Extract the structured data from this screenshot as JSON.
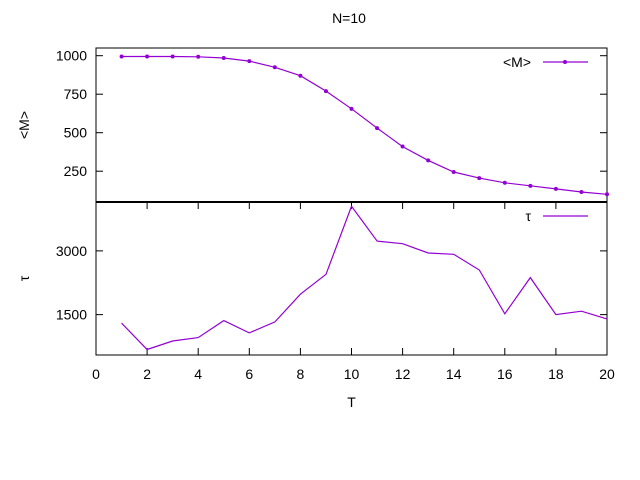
{
  "chart_data": [
    {
      "type": "line",
      "title": "N=10",
      "ylabel": "<M>",
      "xlim": [
        0,
        20
      ],
      "ylim": [
        50,
        1050
      ],
      "yticks": [
        250,
        500,
        750,
        1000
      ],
      "grid": false,
      "legend_position": "top-right",
      "series": [
        {
          "name": "<M>",
          "color": "#9400D3",
          "marker": "point",
          "x": [
            1,
            2,
            3,
            4,
            5,
            6,
            7,
            8,
            9,
            10,
            11,
            12,
            13,
            14,
            15,
            16,
            17,
            18,
            19,
            20
          ],
          "y": [
            995,
            995,
            995,
            993,
            985,
            965,
            925,
            870,
            770,
            655,
            530,
            410,
            320,
            245,
            205,
            175,
            155,
            135,
            115,
            100
          ]
        }
      ]
    },
    {
      "type": "line",
      "xlabel": "T",
      "ylabel": "τ",
      "xlim": [
        0,
        20
      ],
      "ylim": [
        550,
        4150
      ],
      "xticks": [
        0,
        2,
        4,
        6,
        8,
        10,
        12,
        14,
        16,
        18,
        20
      ],
      "yticks": [
        1500,
        3000
      ],
      "grid": false,
      "legend_position": "top-right",
      "series": [
        {
          "name": "τ",
          "color": "#9400D3",
          "marker": "none",
          "x": [
            1,
            2,
            3,
            4,
            5,
            6,
            7,
            8,
            9,
            10,
            11,
            12,
            13,
            14,
            15,
            16,
            17,
            18,
            19,
            20
          ],
          "y": [
            1300,
            680,
            880,
            960,
            1360,
            1070,
            1330,
            1980,
            2450,
            4050,
            3230,
            3170,
            2950,
            2920,
            2550,
            1520,
            2370,
            1500,
            1580,
            1400
          ]
        }
      ]
    }
  ]
}
